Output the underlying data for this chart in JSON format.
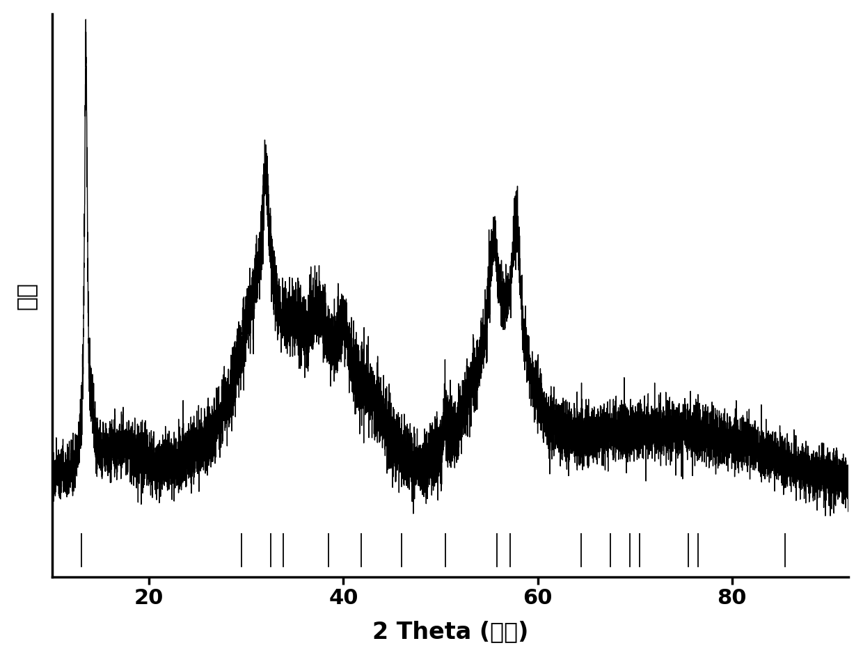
{
  "xlabel": "2 Theta (角度)",
  "ylabel": "强度",
  "xlim": [
    10,
    92
  ],
  "background_color": "#ffffff",
  "line_color": "#000000",
  "reference_tick_positions": [
    13.0,
    29.5,
    32.5,
    33.8,
    38.5,
    41.8,
    46.0,
    50.5,
    55.8,
    57.2,
    64.5,
    67.5,
    69.5,
    70.5,
    75.5,
    76.5,
    85.5
  ],
  "xlabel_fontsize": 24,
  "ylabel_fontsize": 24,
  "xtick_fontsize": 22,
  "linewidth": 1.0,
  "tick_label_values": [
    20,
    40,
    60,
    80
  ]
}
